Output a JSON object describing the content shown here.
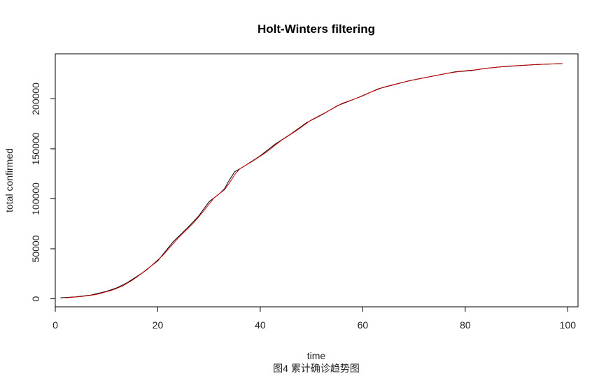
{
  "chart_data": {
    "type": "line",
    "title": "Holt-Winters filtering",
    "xlabel": "time",
    "ylabel": "total confirmed",
    "caption": "图4 累计确诊趋势图",
    "xlim": [
      0,
      102
    ],
    "ylim": [
      -8000,
      245000
    ],
    "xticks": [
      0,
      20,
      40,
      60,
      80,
      100
    ],
    "yticks": [
      0,
      50000,
      100000,
      150000,
      200000
    ],
    "grid": false,
    "legend": "none",
    "series": [
      {
        "color": "#000000",
        "points": [
          [
            1,
            1000
          ],
          [
            4,
            2000
          ],
          [
            7,
            3800
          ],
          [
            10,
            7500
          ],
          [
            12,
            11000
          ],
          [
            14,
            16000
          ],
          [
            17,
            26000
          ],
          [
            20,
            38000
          ],
          [
            23,
            57000
          ],
          [
            26,
            72000
          ],
          [
            28,
            83000
          ],
          [
            30,
            97000
          ],
          [
            32,
            105000
          ],
          [
            33,
            110000
          ],
          [
            34,
            119000
          ],
          [
            35,
            127000
          ],
          [
            37,
            133000
          ],
          [
            40,
            143000
          ],
          [
            43,
            155000
          ],
          [
            46,
            165000
          ],
          [
            49,
            176000
          ],
          [
            52,
            184000
          ],
          [
            55,
            193000
          ],
          [
            58,
            199000
          ],
          [
            60,
            203000
          ],
          [
            63,
            210000
          ],
          [
            66,
            214000
          ],
          [
            69,
            218000
          ],
          [
            72,
            221000
          ],
          [
            75,
            224000
          ],
          [
            78,
            227000
          ],
          [
            81,
            228000
          ],
          [
            84,
            230500
          ],
          [
            87,
            232000
          ],
          [
            90,
            233000
          ],
          [
            93,
            234000
          ],
          [
            96,
            234700
          ],
          [
            99,
            235200
          ]
        ]
      },
      {
        "color": "#cc0000",
        "points": [
          [
            2,
            1000
          ],
          [
            5,
            2200
          ],
          [
            8,
            4300
          ],
          [
            11,
            8500
          ],
          [
            13,
            12500
          ],
          [
            15,
            18500
          ],
          [
            18,
            29500
          ],
          [
            21,
            43500
          ],
          [
            24,
            61000
          ],
          [
            27,
            76000
          ],
          [
            29,
            88000
          ],
          [
            31,
            101000
          ],
          [
            33,
            109000
          ],
          [
            34,
            116000
          ],
          [
            35,
            124000
          ],
          [
            36,
            130000
          ],
          [
            38,
            136000
          ],
          [
            41,
            146000
          ],
          [
            44,
            158000
          ],
          [
            47,
            168000
          ],
          [
            50,
            179000
          ],
          [
            53,
            187000
          ],
          [
            56,
            195500
          ],
          [
            59,
            201000
          ],
          [
            61,
            205500
          ],
          [
            64,
            211500
          ],
          [
            67,
            215500
          ],
          [
            70,
            219000
          ],
          [
            73,
            222000
          ],
          [
            76,
            225000
          ],
          [
            79,
            227500
          ],
          [
            82,
            229000
          ],
          [
            85,
            231000
          ],
          [
            88,
            232500
          ],
          [
            91,
            233500
          ],
          [
            94,
            234300
          ],
          [
            97,
            234900
          ],
          [
            99,
            235200
          ]
        ]
      }
    ]
  }
}
